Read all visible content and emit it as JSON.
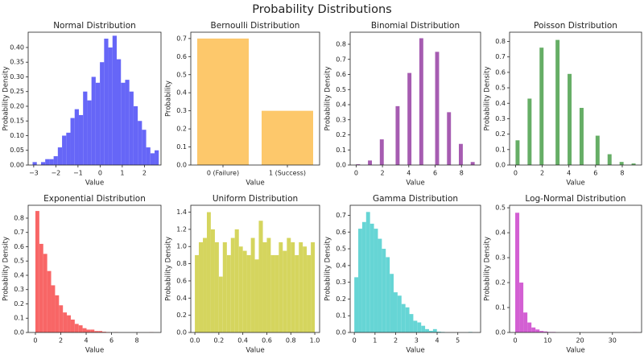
{
  "title": "Probability Distributions",
  "chart_data": [
    {
      "type": "histogram",
      "title": "Normal Distribution",
      "xlabel": "Value",
      "ylabel": "Probability Density",
      "color": "#6666f7",
      "bins": [
        -3.05,
        -2.86,
        -2.67,
        -2.48,
        -2.29,
        -2.1,
        -1.91,
        -1.72,
        -1.53,
        -1.34,
        -1.15,
        -0.96,
        -0.77,
        -0.58,
        -0.39,
        -0.2,
        -0.01,
        0.18,
        0.37,
        0.56,
        0.75,
        0.94,
        1.13,
        1.32,
        1.51,
        1.7,
        1.89,
        2.08,
        2.27,
        2.46,
        2.65
      ],
      "values": [
        0.01,
        0.0,
        0.01,
        0.02,
        0.02,
        0.03,
        0.06,
        0.1,
        0.11,
        0.16,
        0.19,
        0.17,
        0.25,
        0.22,
        0.3,
        0.28,
        0.35,
        0.43,
        0.4,
        0.44,
        0.36,
        0.28,
        0.29,
        0.25,
        0.2,
        0.15,
        0.12,
        0.06,
        0.04,
        0.05
      ],
      "xlim": [
        -3.25,
        2.75
      ],
      "xticks": [
        {
          "value": -3,
          "label": "−3"
        },
        {
          "value": -2,
          "label": "−2"
        },
        {
          "value": -1,
          "label": "−1"
        },
        0,
        1,
        2
      ],
      "ylim": [
        0,
        0.452
      ],
      "yticks": [
        {
          "value": 0,
          "label": "0.00"
        },
        {
          "value": 0.05,
          "label": "0.05"
        },
        {
          "value": 0.1,
          "label": "0.10"
        },
        {
          "value": 0.15,
          "label": "0.15"
        },
        {
          "value": 0.2,
          "label": "0.20"
        },
        {
          "value": 0.25,
          "label": "0.25"
        },
        {
          "value": 0.3,
          "label": "0.30"
        },
        {
          "value": 0.35,
          "label": "0.35"
        },
        {
          "value": 0.4,
          "label": "0.40"
        }
      ]
    },
    {
      "type": "bar",
      "title": "Bernoulli Distribution",
      "xlabel": "Value",
      "ylabel": "Probability",
      "color": "#fdc86b",
      "categories": [
        "0 (Failure)",
        "1 (Success)"
      ],
      "values": [
        0.7,
        0.3
      ],
      "ylim": [
        0,
        0.735
      ],
      "yticks": [
        {
          "value": 0,
          "label": "0.0"
        },
        {
          "value": 0.1,
          "label": "0.1"
        },
        {
          "value": 0.2,
          "label": "0.2"
        },
        {
          "value": 0.3,
          "label": "0.3"
        },
        {
          "value": 0.4,
          "label": "0.4"
        },
        {
          "value": 0.5,
          "label": "0.5"
        },
        {
          "value": 0.6,
          "label": "0.6"
        },
        {
          "value": 0.7,
          "label": "0.7"
        }
      ]
    },
    {
      "type": "histogram",
      "title": "Binomial Distribution",
      "xlabel": "Value",
      "ylabel": "Probability Density",
      "color": "#a65cb1",
      "bins": [
        0,
        0.3,
        0.6,
        0.9,
        1.2,
        1.5,
        1.8,
        2.1,
        2.4,
        2.7,
        3,
        3.3,
        3.6,
        3.9,
        4.2,
        4.5,
        4.8,
        5.1,
        5.4,
        5.7,
        6,
        6.3,
        6.6,
        6.9,
        7.2,
        7.5,
        7.8,
        8.1,
        8.4,
        8.7,
        9
      ],
      "values": [
        0.005,
        0,
        0,
        0.03,
        0,
        0,
        0.17,
        0,
        0,
        0,
        0.39,
        0,
        0,
        0.61,
        0,
        0,
        0.84,
        0,
        0,
        0,
        0.75,
        0,
        0,
        0.35,
        0,
        0,
        0.14,
        0,
        0,
        0.02
      ],
      "xlim": [
        -0.45,
        9.45
      ],
      "xticks": [
        0,
        2,
        4,
        6,
        8
      ],
      "ylim": [
        0,
        0.88
      ],
      "yticks": [
        {
          "value": 0,
          "label": "0.0"
        },
        {
          "value": 0.1,
          "label": "0.1"
        },
        {
          "value": 0.2,
          "label": "0.2"
        },
        {
          "value": 0.3,
          "label": "0.3"
        },
        {
          "value": 0.4,
          "label": "0.4"
        },
        {
          "value": 0.5,
          "label": "0.5"
        },
        {
          "value": 0.6,
          "label": "0.6"
        },
        {
          "value": 0.7,
          "label": "0.7"
        },
        {
          "value": 0.8,
          "label": "0.8"
        }
      ]
    },
    {
      "type": "histogram",
      "title": "Poisson Distribution",
      "xlabel": "Value",
      "ylabel": "Probability Density",
      "color": "#66ae66",
      "bins": [
        0,
        0.3,
        0.6,
        0.9,
        1.2,
        1.5,
        1.8,
        2.1,
        2.4,
        2.7,
        3,
        3.3,
        3.6,
        3.9,
        4.2,
        4.5,
        4.8,
        5.1,
        5.4,
        5.7,
        6,
        6.3,
        6.6,
        6.9,
        7.2,
        7.5,
        7.8,
        8.1,
        8.4,
        8.7,
        9
      ],
      "values": [
        0.16,
        0,
        0,
        0.43,
        0,
        0,
        0.76,
        0,
        0,
        0,
        0.81,
        0,
        0,
        0.59,
        0,
        0,
        0.37,
        0,
        0,
        0,
        0.19,
        0,
        0,
        0.07,
        0,
        0,
        0.02,
        0,
        0,
        0.01
      ],
      "xlim": [
        -0.45,
        9.45
      ],
      "xticks": [
        0,
        2,
        4,
        6,
        8
      ],
      "ylim": [
        0,
        0.86
      ],
      "yticks": [
        {
          "value": 0,
          "label": "0.0"
        },
        {
          "value": 0.1,
          "label": "0.1"
        },
        {
          "value": 0.2,
          "label": "0.2"
        },
        {
          "value": 0.3,
          "label": "0.3"
        },
        {
          "value": 0.4,
          "label": "0.4"
        },
        {
          "value": 0.5,
          "label": "0.5"
        },
        {
          "value": 0.6,
          "label": "0.6"
        },
        {
          "value": 0.7,
          "label": "0.7"
        },
        {
          "value": 0.8,
          "label": "0.8"
        }
      ]
    },
    {
      "type": "histogram",
      "title": "Exponential Distribution",
      "xlabel": "Value",
      "ylabel": "Probability Density",
      "color": "#f86666",
      "bins": [
        0,
        0.31,
        0.62,
        0.93,
        1.24,
        1.55,
        1.86,
        2.17,
        2.48,
        2.79,
        3.1,
        3.41,
        3.72,
        4.03,
        4.34,
        4.65,
        4.96,
        5.27,
        5.58,
        5.89,
        6.2,
        6.51,
        6.82,
        7.13,
        7.44,
        7.75,
        8.06,
        8.37,
        8.68,
        8.99,
        9.3
      ],
      "values": [
        0.85,
        0.62,
        0.55,
        0.43,
        0.33,
        0.26,
        0.19,
        0.14,
        0.12,
        0.09,
        0.06,
        0.05,
        0.03,
        0.02,
        0.02,
        0.01,
        0.01,
        0.005,
        0.003,
        0,
        0.002,
        0,
        0,
        0,
        0,
        0,
        0,
        0,
        0,
        0.002
      ],
      "xlim": [
        -0.57,
        9.9
      ],
      "xticks": [
        0,
        2,
        4,
        6,
        8
      ],
      "ylim": [
        0,
        0.89
      ],
      "yticks": [
        {
          "value": 0,
          "label": "0.0"
        },
        {
          "value": 0.1,
          "label": "0.1"
        },
        {
          "value": 0.2,
          "label": "0.2"
        },
        {
          "value": 0.3,
          "label": "0.3"
        },
        {
          "value": 0.4,
          "label": "0.4"
        },
        {
          "value": 0.5,
          "label": "0.5"
        },
        {
          "value": 0.6,
          "label": "0.6"
        },
        {
          "value": 0.7,
          "label": "0.7"
        },
        {
          "value": 0.8,
          "label": "0.8"
        }
      ]
    },
    {
      "type": "histogram",
      "title": "Uniform Distribution",
      "xlabel": "Value",
      "ylabel": "Probability Density",
      "color": "#d5d55e",
      "bins": [
        0,
        0.033,
        0.067,
        0.1,
        0.133,
        0.167,
        0.2,
        0.233,
        0.267,
        0.3,
        0.333,
        0.367,
        0.4,
        0.433,
        0.467,
        0.5,
        0.533,
        0.567,
        0.6,
        0.633,
        0.667,
        0.7,
        0.733,
        0.767,
        0.8,
        0.833,
        0.867,
        0.9,
        0.933,
        0.967,
        1
      ],
      "values": [
        0.9,
        1.05,
        1.1,
        1.4,
        1.2,
        1.05,
        0.65,
        1.05,
        0.9,
        1.1,
        1.2,
        1.0,
        0.95,
        0.9,
        1.1,
        0.85,
        1.3,
        1.05,
        1.1,
        0.9,
        0.9,
        1.05,
        0.95,
        1.1,
        1.05,
        0.9,
        1.05,
        1.0,
        0.9,
        1.05
      ],
      "xlim": [
        -0.034,
        1.04
      ],
      "xticks": [
        {
          "value": 0,
          "label": "0.0"
        },
        {
          "value": 0.2,
          "label": "0.2"
        },
        {
          "value": 0.4,
          "label": "0.4"
        },
        {
          "value": 0.6,
          "label": "0.6"
        },
        {
          "value": 0.8,
          "label": "0.8"
        },
        {
          "value": 1,
          "label": "1.0"
        }
      ],
      "ylim": [
        0,
        1.48
      ],
      "yticks": [
        {
          "value": 0,
          "label": "0.0"
        },
        {
          "value": 0.2,
          "label": "0.2"
        },
        {
          "value": 0.4,
          "label": "0.4"
        },
        {
          "value": 0.6,
          "label": "0.6"
        },
        {
          "value": 0.8,
          "label": "0.8"
        },
        {
          "value": 1,
          "label": "1.0"
        },
        {
          "value": 1.2,
          "label": "1.2"
        },
        {
          "value": 1.4,
          "label": "1.4"
        }
      ]
    },
    {
      "type": "histogram",
      "title": "Gamma Distribution",
      "xlabel": "Value",
      "ylabel": "Probability Density",
      "color": "#66d5d5",
      "bins": [
        0,
        0.19,
        0.38,
        0.57,
        0.76,
        0.95,
        1.14,
        1.33,
        1.52,
        1.71,
        1.9,
        2.09,
        2.28,
        2.47,
        2.66,
        2.85,
        3.04,
        3.23,
        3.42,
        3.61,
        3.8,
        3.99,
        4.18,
        4.37,
        4.56,
        4.75,
        4.94,
        5.13,
        5.32,
        5.51,
        5.7
      ],
      "values": [
        0.33,
        0.62,
        0.66,
        0.72,
        0.65,
        0.62,
        0.56,
        0.5,
        0.45,
        0.35,
        0.24,
        0.22,
        0.17,
        0.15,
        0.11,
        0.07,
        0.06,
        0.04,
        0.02,
        0.01,
        0.02,
        0.005,
        0.003,
        0,
        0,
        0,
        0,
        0,
        0,
        0.003
      ],
      "xlim": [
        -0.2,
        6.1
      ],
      "xticks": [
        0,
        1,
        2,
        3,
        4,
        5
      ],
      "ylim": [
        0,
        0.76
      ],
      "yticks": [
        {
          "value": 0,
          "label": "0.0"
        },
        {
          "value": 0.1,
          "label": "0.1"
        },
        {
          "value": 0.2,
          "label": "0.2"
        },
        {
          "value": 0.3,
          "label": "0.3"
        },
        {
          "value": 0.4,
          "label": "0.4"
        },
        {
          "value": 0.5,
          "label": "0.5"
        },
        {
          "value": 0.6,
          "label": "0.6"
        },
        {
          "value": 0.7,
          "label": "0.7"
        }
      ]
    },
    {
      "type": "histogram",
      "title": "Log-Normal Distribution",
      "xlabel": "Value",
      "ylabel": "Probability Density",
      "color": "#d35fd3",
      "bins": [
        0,
        1.25,
        2.5,
        3.75,
        5,
        6.25,
        7.5,
        8.75,
        10,
        11.25,
        12.5,
        13.75,
        15,
        16.25,
        17.5,
        18.75,
        20,
        21.25,
        22.5,
        23.75,
        25,
        26.25,
        27.5,
        28.75,
        30,
        31.25,
        32.5,
        33.75,
        35,
        36.25,
        37.5
      ],
      "values": [
        0.48,
        0.2,
        0.08,
        0.04,
        0.02,
        0.012,
        0.006,
        0.004,
        0.002,
        0.002,
        0,
        0,
        0,
        0,
        0,
        0,
        0,
        0,
        0,
        0,
        0,
        0,
        0,
        0,
        0,
        0,
        0,
        0,
        0,
        0.001
      ],
      "xlim": [
        -1.75,
        39
      ],
      "xticks": [
        0,
        10,
        20,
        30
      ],
      "ylim": [
        0,
        0.51
      ],
      "yticks": [
        {
          "value": 0,
          "label": "0.0"
        },
        {
          "value": 0.1,
          "label": "0.1"
        },
        {
          "value": 0.2,
          "label": "0.2"
        },
        {
          "value": 0.3,
          "label": "0.3"
        },
        {
          "value": 0.4,
          "label": "0.4"
        },
        {
          "value": 0.5,
          "label": "0.5"
        }
      ]
    }
  ]
}
